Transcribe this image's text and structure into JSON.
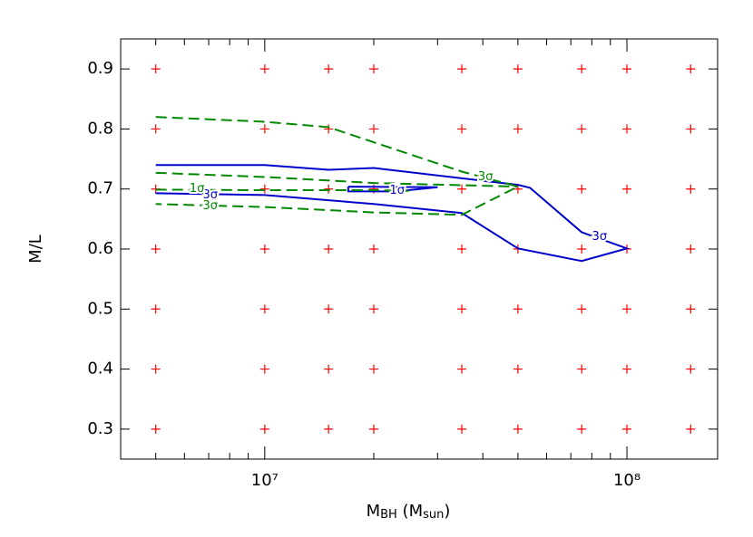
{
  "chart_data": {
    "type": "contour",
    "xlabel": [
      "M",
      "BH",
      "  (M",
      "sun",
      ")"
    ],
    "ylabel": "M/L",
    "xscale": "log",
    "xlim": [
      4000000,
      178000000
    ],
    "ylim": [
      0.25,
      0.95
    ],
    "xticks": [
      {
        "value": 10000000,
        "label": "10⁷"
      },
      {
        "value": 100000000,
        "label": "10⁸"
      }
    ],
    "xminorticks": [
      5000000,
      6000000,
      7000000,
      8000000,
      9000000,
      20000000,
      30000000,
      40000000,
      50000000,
      60000000,
      70000000,
      80000000,
      90000000
    ],
    "yticks": [
      0.3,
      0.4,
      0.5,
      0.6,
      0.7,
      0.8,
      0.9
    ],
    "grid_points": {
      "color": "#ff0000",
      "x": [
        5000000,
        10000000,
        15000000,
        20000000,
        35000000,
        50000000,
        75000000,
        100000000,
        150000000
      ],
      "y": [
        0.3,
        0.4,
        0.5,
        0.6,
        0.7,
        0.8,
        0.9
      ]
    },
    "series": [
      {
        "color": "#0000cc",
        "dash": false,
        "x": [
          5000000,
          10000000,
          15000000,
          20000000,
          50000000,
          54000000,
          75000000,
          100000000,
          75000000,
          50000000,
          35000000,
          20000000,
          10000000,
          5000000
        ],
        "values": [
          0.74,
          0.74,
          0.732,
          0.735,
          0.707,
          0.702,
          0.628,
          0.601,
          0.58,
          0.601,
          0.66,
          0.675,
          0.69,
          0.693
        ]
      },
      {
        "color": "#0000cc",
        "dash": false,
        "x": [
          17000000,
          30000000,
          23000000,
          17000000,
          17000000
        ],
        "values": [
          0.704,
          0.703,
          0.696,
          0.696,
          0.704
        ]
      },
      {
        "color": "#008800",
        "dash": true,
        "x": [
          5000000,
          10000000,
          15000000,
          35000000,
          50000000,
          35000000,
          20000000,
          10000000,
          5000000
        ],
        "values": [
          0.82,
          0.812,
          0.803,
          0.729,
          0.704,
          0.657,
          0.661,
          0.67,
          0.675
        ]
      },
      {
        "color": "#008800",
        "dash": true,
        "x": [
          5000000,
          10000000,
          20000000,
          50000000
        ],
        "values": [
          0.727,
          0.72,
          0.71,
          0.704
        ]
      },
      {
        "color": "#008800",
        "dash": true,
        "x": [
          5000000,
          10000000,
          20000000,
          25000000
        ],
        "values": [
          0.699,
          0.698,
          0.698,
          0.697
        ]
      }
    ],
    "annotations": [
      {
        "text": "3σ",
        "x": 84000000,
        "y": 0.62,
        "color": "#0000cc"
      },
      {
        "text": "3σ",
        "x": 7070000,
        "y": 0.69,
        "color": "#0000cc"
      },
      {
        "text": "1σ",
        "x": 23200000,
        "y": 0.697,
        "color": "#0000cc"
      },
      {
        "text": "1σ",
        "x": 6500000,
        "y": 0.7,
        "color": "#008800"
      },
      {
        "text": "3σ",
        "x": 7070000,
        "y": 0.672,
        "color": "#008800"
      },
      {
        "text": "3σ",
        "x": 40700000,
        "y": 0.72,
        "color": "#008800"
      }
    ]
  }
}
